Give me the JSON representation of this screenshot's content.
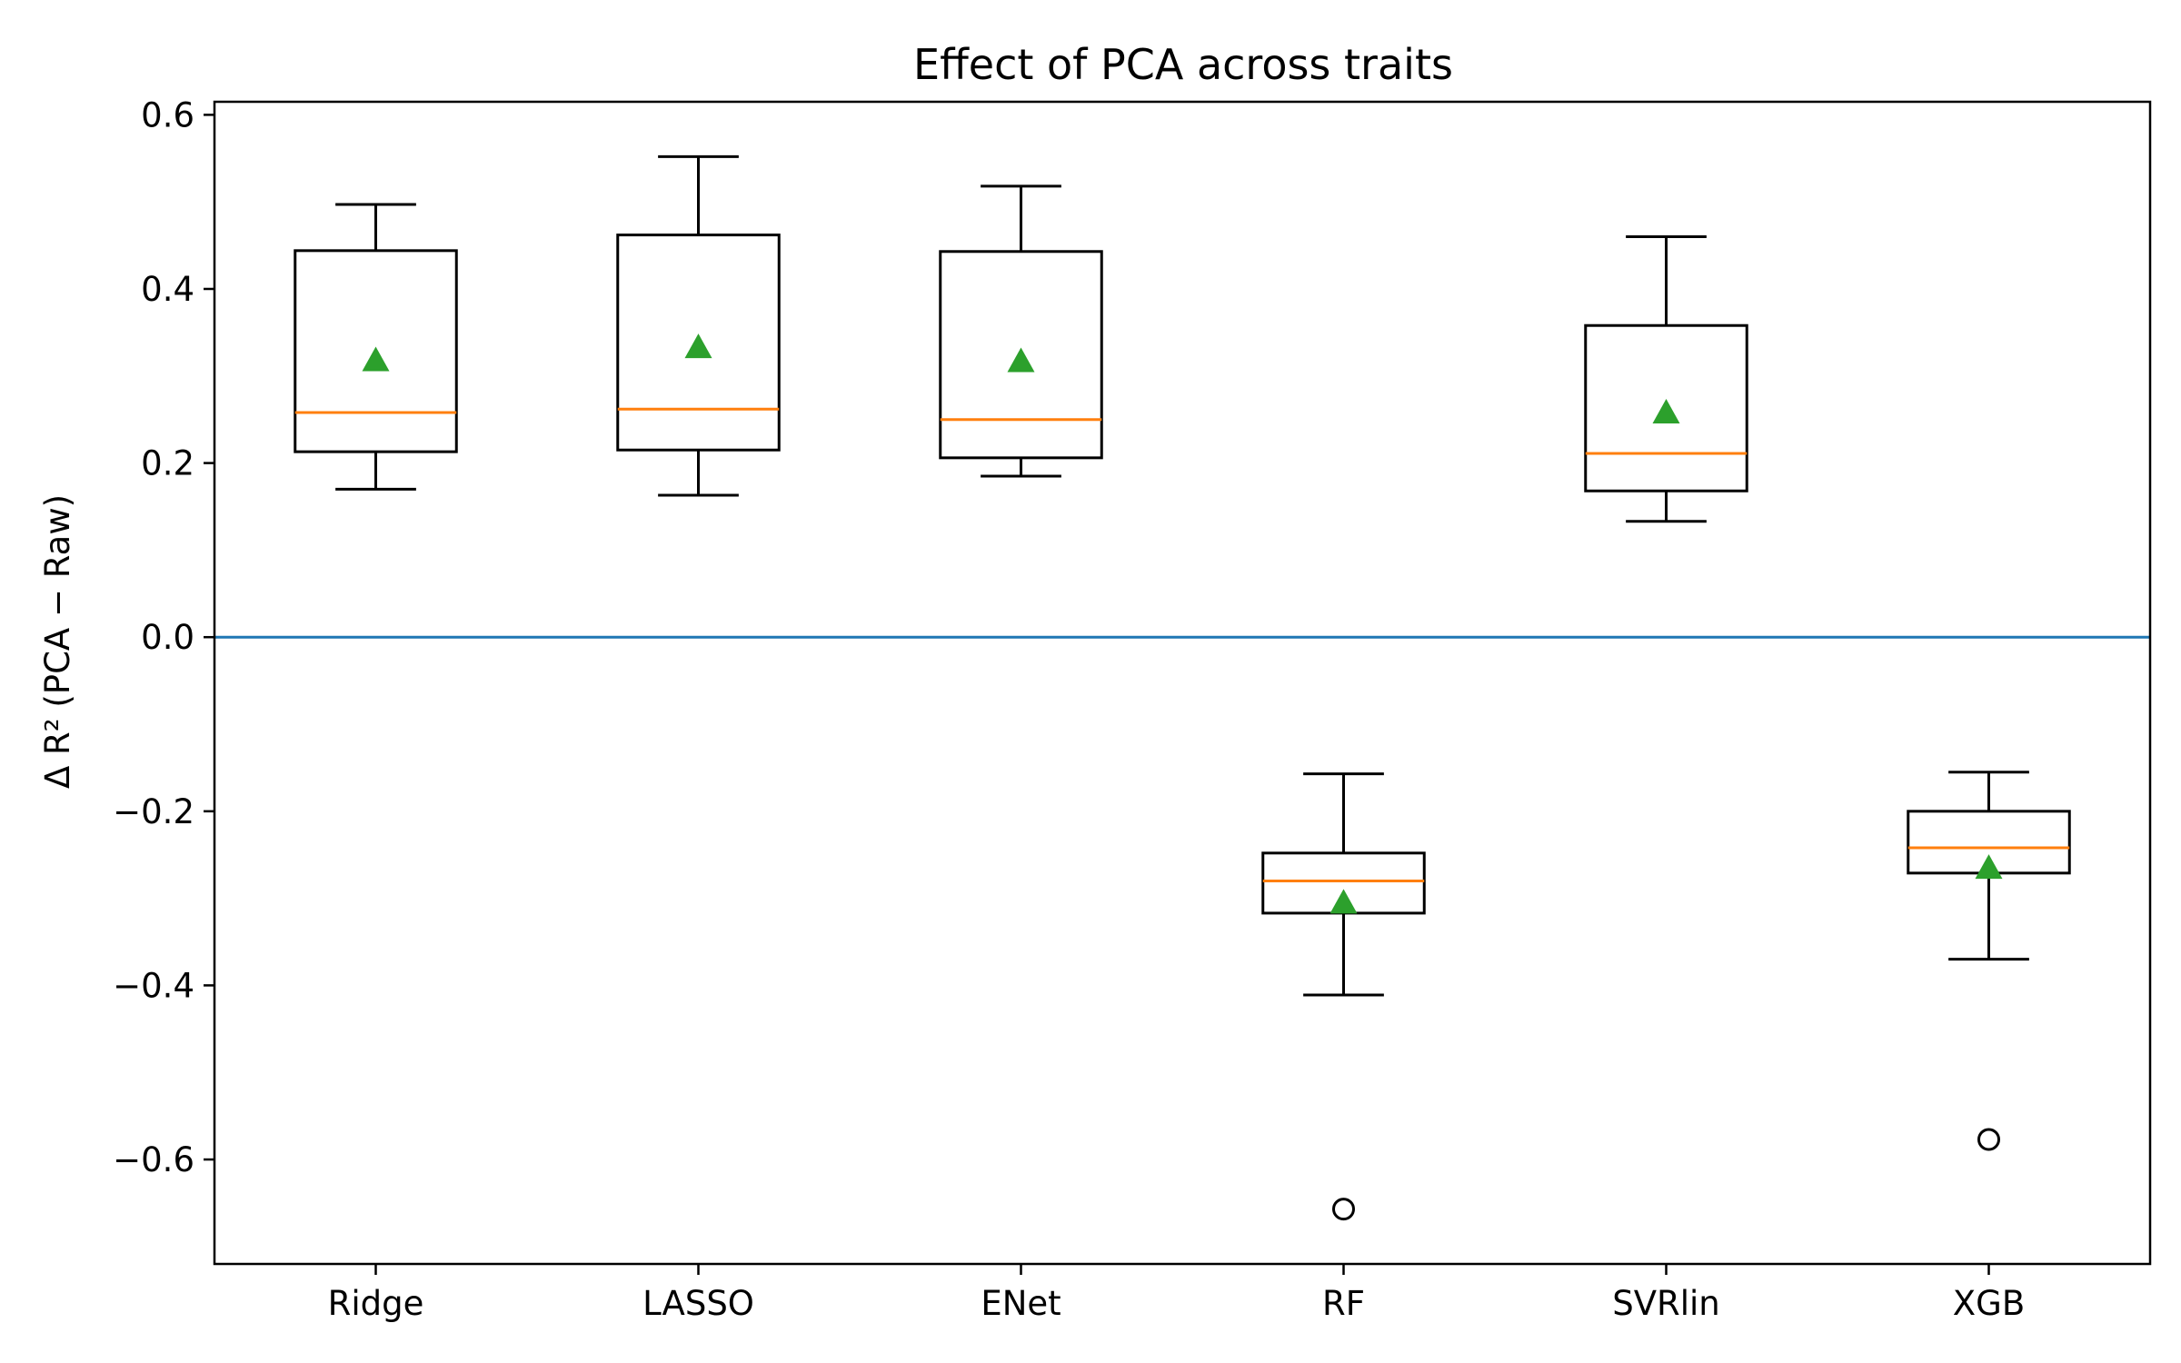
{
  "chart_data": {
    "type": "box",
    "title": "Effect of PCA across traits",
    "xlabel": "",
    "ylabel": "Δ R² (PCA − Raw)",
    "ylim": [
      -0.72,
      0.615
    ],
    "yticks": [
      -0.6,
      -0.4,
      -0.2,
      0.0,
      0.2,
      0.4,
      0.6
    ],
    "ytick_labels": [
      "−0.6",
      "−0.4",
      "−0.2",
      "0.0",
      "0.2",
      "0.4",
      "0.6"
    ],
    "categories": [
      "Ridge",
      "LASSO",
      "ENet",
      "RF",
      "SVRlin",
      "XGB"
    ],
    "reference_line": {
      "y": 0.0,
      "color": "#1f77b4"
    },
    "colors": {
      "box": "#000000",
      "median": "#ff7f0e",
      "mean": "#2ca02c"
    },
    "boxes": [
      {
        "name": "Ridge",
        "whisker_low": 0.17,
        "q1": 0.213,
        "median": 0.258,
        "q3": 0.444,
        "whisker_high": 0.497,
        "mean": 0.318,
        "outliers": []
      },
      {
        "name": "LASSO",
        "whisker_low": 0.163,
        "q1": 0.215,
        "median": 0.262,
        "q3": 0.462,
        "whisker_high": 0.552,
        "mean": 0.333,
        "outliers": []
      },
      {
        "name": "ENet",
        "whisker_low": 0.185,
        "q1": 0.206,
        "median": 0.25,
        "q3": 0.443,
        "whisker_high": 0.518,
        "mean": 0.317,
        "outliers": []
      },
      {
        "name": "RF",
        "whisker_low": -0.411,
        "q1": -0.317,
        "median": -0.28,
        "q3": -0.248,
        "whisker_high": -0.157,
        "mean": -0.305,
        "outliers": [
          -0.657
        ]
      },
      {
        "name": "SVRlin",
        "whisker_low": 0.133,
        "q1": 0.168,
        "median": 0.211,
        "q3": 0.358,
        "whisker_high": 0.46,
        "mean": 0.258,
        "outliers": []
      },
      {
        "name": "XGB",
        "whisker_low": -0.37,
        "q1": -0.271,
        "median": -0.242,
        "q3": -0.2,
        "whisker_high": -0.155,
        "mean": -0.265,
        "outliers": [
          -0.577
        ]
      }
    ]
  }
}
